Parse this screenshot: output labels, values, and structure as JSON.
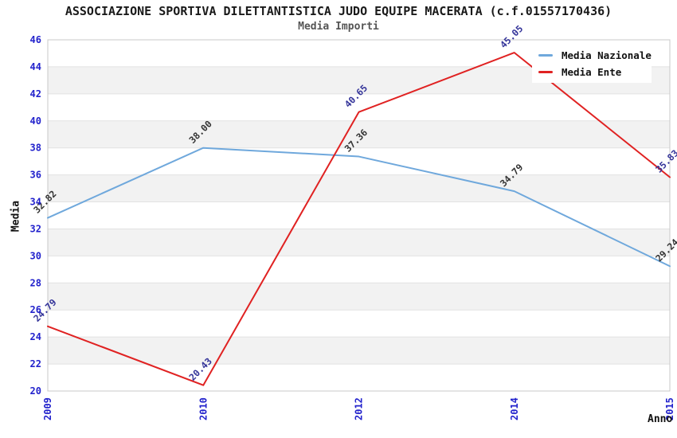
{
  "header": {
    "title": "ASSOCIAZIONE SPORTIVA DILETTANTISTICA JUDO EQUIPE MACERATA (c.f.01557170436)",
    "subtitle": "Media Importi"
  },
  "chart_data": {
    "type": "line",
    "title": "ASSOCIAZIONE SPORTIVA DILETTANTISTICA JUDO EQUIPE MACERATA (c.f.01557170436)",
    "subtitle": "Media Importi",
    "categories": [
      "2009",
      "2010",
      "2012",
      "2014",
      "2015"
    ],
    "series": [
      {
        "name": "Media Nazionale",
        "color": "#6fa8dc",
        "label_color": "#333333",
        "values": [
          32.82,
          38.0,
          37.36,
          34.79,
          29.24
        ]
      },
      {
        "name": "Media Ente",
        "color": "#e02222",
        "label_color": "#333399",
        "values": [
          24.79,
          20.43,
          40.65,
          45.05,
          35.83
        ]
      }
    ],
    "xlabel": "Anno",
    "ylabel": "Media",
    "ylim": [
      20,
      46
    ],
    "ytick_step": 2,
    "grid": "horizontal-bands",
    "legend_position": "top-right",
    "colors": {
      "tick_label": "#2222cc",
      "band_fill": "#f2f2f2",
      "grid_line": "#e2e2e2",
      "plot_border": "#c8c8c8",
      "title_text": "#1a1a1a",
      "subtitle_text": "#555555"
    }
  }
}
